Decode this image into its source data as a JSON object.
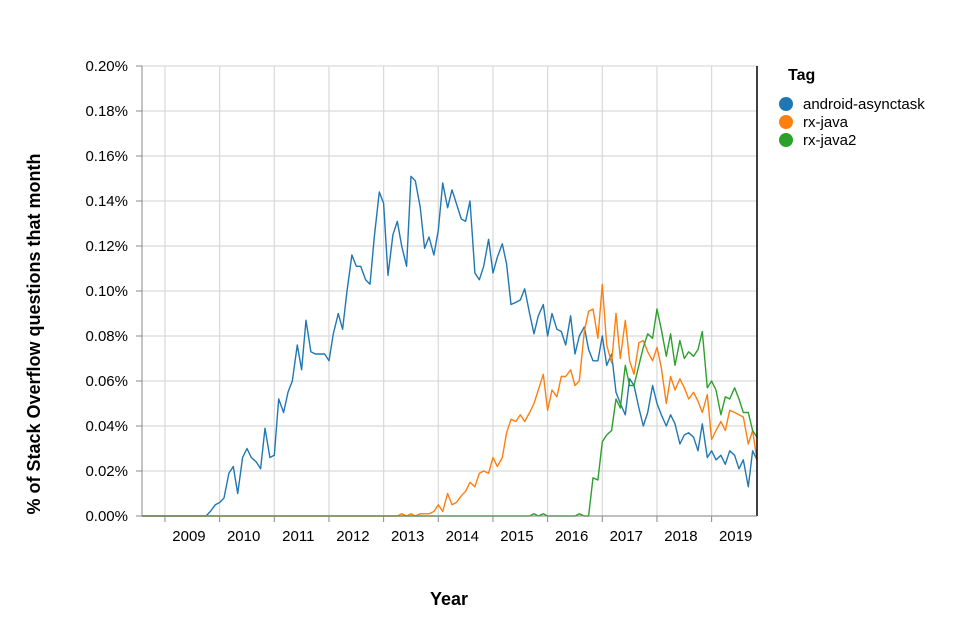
{
  "chart_data": {
    "type": "line",
    "xlabel": "Year",
    "ylabel": "% of Stack Overflow questions that month",
    "x_ticks": [
      "2009",
      "2010",
      "2011",
      "2012",
      "2013",
      "2014",
      "2015",
      "2016",
      "2017",
      "2018",
      "2019"
    ],
    "y_ticks": [
      "0.00%",
      "0.02%",
      "0.04%",
      "0.06%",
      "0.08%",
      "0.10%",
      "0.12%",
      "0.14%",
      "0.16%",
      "0.18%",
      "0.20%"
    ],
    "xlim": [
      2008.58,
      2019.83
    ],
    "ylim": [
      0,
      0.2
    ],
    "grid": true,
    "legend": {
      "title": "Tag",
      "position": "right"
    },
    "series": [
      {
        "name": "android-asynctask",
        "color": "#1f77b4",
        "points": [
          [
            2008.58,
            0
          ],
          [
            2009.0,
            0
          ],
          [
            2009.5,
            0
          ],
          [
            2009.75,
            0
          ],
          [
            2009.83,
            0.002
          ],
          [
            2009.92,
            0.005
          ],
          [
            2010.0,
            0.006
          ],
          [
            2010.08,
            0.008
          ],
          [
            2010.17,
            0.019
          ],
          [
            2010.25,
            0.022
          ],
          [
            2010.33,
            0.01
          ],
          [
            2010.42,
            0.026
          ],
          [
            2010.5,
            0.03
          ],
          [
            2010.58,
            0.026
          ],
          [
            2010.67,
            0.024
          ],
          [
            2010.75,
            0.021
          ],
          [
            2010.83,
            0.039
          ],
          [
            2010.92,
            0.026
          ],
          [
            2011.0,
            0.027
          ],
          [
            2011.08,
            0.052
          ],
          [
            2011.17,
            0.046
          ],
          [
            2011.25,
            0.055
          ],
          [
            2011.33,
            0.06
          ],
          [
            2011.42,
            0.076
          ],
          [
            2011.5,
            0.065
          ],
          [
            2011.58,
            0.087
          ],
          [
            2011.67,
            0.073
          ],
          [
            2011.75,
            0.072
          ],
          [
            2011.83,
            0.072
          ],
          [
            2011.92,
            0.072
          ],
          [
            2012.0,
            0.069
          ],
          [
            2012.08,
            0.081
          ],
          [
            2012.17,
            0.09
          ],
          [
            2012.25,
            0.083
          ],
          [
            2012.33,
            0.1
          ],
          [
            2012.42,
            0.116
          ],
          [
            2012.5,
            0.111
          ],
          [
            2012.58,
            0.111
          ],
          [
            2012.67,
            0.105
          ],
          [
            2012.75,
            0.103
          ],
          [
            2012.83,
            0.124
          ],
          [
            2012.92,
            0.144
          ],
          [
            2013.0,
            0.139
          ],
          [
            2013.08,
            0.107
          ],
          [
            2013.17,
            0.125
          ],
          [
            2013.25,
            0.131
          ],
          [
            2013.33,
            0.12
          ],
          [
            2013.42,
            0.111
          ],
          [
            2013.5,
            0.151
          ],
          [
            2013.58,
            0.149
          ],
          [
            2013.67,
            0.137
          ],
          [
            2013.75,
            0.119
          ],
          [
            2013.83,
            0.124
          ],
          [
            2013.92,
            0.116
          ],
          [
            2014.0,
            0.127
          ],
          [
            2014.08,
            0.148
          ],
          [
            2014.17,
            0.137
          ],
          [
            2014.25,
            0.145
          ],
          [
            2014.33,
            0.139
          ],
          [
            2014.42,
            0.132
          ],
          [
            2014.5,
            0.131
          ],
          [
            2014.58,
            0.14
          ],
          [
            2014.67,
            0.108
          ],
          [
            2014.75,
            0.105
          ],
          [
            2014.83,
            0.111
          ],
          [
            2014.92,
            0.123
          ],
          [
            2015.0,
            0.108
          ],
          [
            2015.08,
            0.115
          ],
          [
            2015.17,
            0.121
          ],
          [
            2015.25,
            0.112
          ],
          [
            2015.33,
            0.094
          ],
          [
            2015.42,
            0.095
          ],
          [
            2015.5,
            0.096
          ],
          [
            2015.58,
            0.101
          ],
          [
            2015.67,
            0.09
          ],
          [
            2015.75,
            0.081
          ],
          [
            2015.83,
            0.089
          ],
          [
            2015.92,
            0.094
          ],
          [
            2016.0,
            0.08
          ],
          [
            2016.08,
            0.09
          ],
          [
            2016.17,
            0.083
          ],
          [
            2016.25,
            0.082
          ],
          [
            2016.33,
            0.076
          ],
          [
            2016.42,
            0.089
          ],
          [
            2016.5,
            0.072
          ],
          [
            2016.58,
            0.08
          ],
          [
            2016.67,
            0.084
          ],
          [
            2016.75,
            0.074
          ],
          [
            2016.83,
            0.069
          ],
          [
            2016.92,
            0.069
          ],
          [
            2017.0,
            0.08
          ],
          [
            2017.08,
            0.067
          ],
          [
            2017.17,
            0.072
          ],
          [
            2017.25,
            0.055
          ],
          [
            2017.33,
            0.05
          ],
          [
            2017.42,
            0.045
          ],
          [
            2017.5,
            0.061
          ],
          [
            2017.58,
            0.058
          ],
          [
            2017.67,
            0.048
          ],
          [
            2017.75,
            0.04
          ],
          [
            2017.83,
            0.046
          ],
          [
            2017.92,
            0.058
          ],
          [
            2018.0,
            0.05
          ],
          [
            2018.08,
            0.045
          ],
          [
            2018.17,
            0.04
          ],
          [
            2018.25,
            0.045
          ],
          [
            2018.33,
            0.041
          ],
          [
            2018.42,
            0.032
          ],
          [
            2018.5,
            0.036
          ],
          [
            2018.58,
            0.037
          ],
          [
            2018.67,
            0.035
          ],
          [
            2018.75,
            0.029
          ],
          [
            2018.83,
            0.041
          ],
          [
            2018.92,
            0.026
          ],
          [
            2019.0,
            0.029
          ],
          [
            2019.08,
            0.025
          ],
          [
            2019.17,
            0.027
          ],
          [
            2019.25,
            0.023
          ],
          [
            2019.33,
            0.029
          ],
          [
            2019.42,
            0.027
          ],
          [
            2019.5,
            0.021
          ],
          [
            2019.58,
            0.025
          ],
          [
            2019.67,
            0.013
          ],
          [
            2019.75,
            0.029
          ],
          [
            2019.83,
            0.025
          ]
        ]
      },
      {
        "name": "rx-java",
        "color": "#ff7f0e",
        "points": [
          [
            2008.58,
            0
          ],
          [
            2013.25,
            0
          ],
          [
            2013.33,
            0.001
          ],
          [
            2013.42,
            0
          ],
          [
            2013.5,
            0.001
          ],
          [
            2013.58,
            0
          ],
          [
            2013.67,
            0.001
          ],
          [
            2013.75,
            0.001
          ],
          [
            2013.83,
            0.001
          ],
          [
            2013.92,
            0.002
          ],
          [
            2014.0,
            0.005
          ],
          [
            2014.08,
            0.002
          ],
          [
            2014.17,
            0.01
          ],
          [
            2014.25,
            0.005
          ],
          [
            2014.33,
            0.006
          ],
          [
            2014.42,
            0.009
          ],
          [
            2014.5,
            0.011
          ],
          [
            2014.58,
            0.015
          ],
          [
            2014.67,
            0.013
          ],
          [
            2014.75,
            0.019
          ],
          [
            2014.83,
            0.02
          ],
          [
            2014.92,
            0.019
          ],
          [
            2015.0,
            0.026
          ],
          [
            2015.08,
            0.022
          ],
          [
            2015.17,
            0.026
          ],
          [
            2015.25,
            0.037
          ],
          [
            2015.33,
            0.043
          ],
          [
            2015.42,
            0.042
          ],
          [
            2015.5,
            0.045
          ],
          [
            2015.58,
            0.042
          ],
          [
            2015.67,
            0.046
          ],
          [
            2015.75,
            0.05
          ],
          [
            2015.83,
            0.056
          ],
          [
            2015.92,
            0.063
          ],
          [
            2016.0,
            0.047
          ],
          [
            2016.08,
            0.056
          ],
          [
            2016.17,
            0.053
          ],
          [
            2016.25,
            0.062
          ],
          [
            2016.33,
            0.062
          ],
          [
            2016.42,
            0.065
          ],
          [
            2016.5,
            0.058
          ],
          [
            2016.58,
            0.06
          ],
          [
            2016.67,
            0.082
          ],
          [
            2016.75,
            0.091
          ],
          [
            2016.83,
            0.092
          ],
          [
            2016.92,
            0.079
          ],
          [
            2017.0,
            0.103
          ],
          [
            2017.08,
            0.076
          ],
          [
            2017.17,
            0.068
          ],
          [
            2017.25,
            0.09
          ],
          [
            2017.33,
            0.07
          ],
          [
            2017.42,
            0.087
          ],
          [
            2017.5,
            0.069
          ],
          [
            2017.58,
            0.063
          ],
          [
            2017.67,
            0.077
          ],
          [
            2017.75,
            0.078
          ],
          [
            2017.83,
            0.073
          ],
          [
            2017.92,
            0.069
          ],
          [
            2018.0,
            0.075
          ],
          [
            2018.08,
            0.066
          ],
          [
            2018.17,
            0.05
          ],
          [
            2018.25,
            0.062
          ],
          [
            2018.33,
            0.056
          ],
          [
            2018.42,
            0.061
          ],
          [
            2018.5,
            0.057
          ],
          [
            2018.58,
            0.052
          ],
          [
            2018.67,
            0.055
          ],
          [
            2018.75,
            0.051
          ],
          [
            2018.83,
            0.046
          ],
          [
            2018.92,
            0.054
          ],
          [
            2019.0,
            0.034
          ],
          [
            2019.08,
            0.038
          ],
          [
            2019.17,
            0.042
          ],
          [
            2019.25,
            0.038
          ],
          [
            2019.33,
            0.047
          ],
          [
            2019.42,
            0.046
          ],
          [
            2019.5,
            0.045
          ],
          [
            2019.58,
            0.044
          ],
          [
            2019.67,
            0.032
          ],
          [
            2019.75,
            0.038
          ],
          [
            2019.83,
            0.025
          ]
        ]
      },
      {
        "name": "rx-java2",
        "color": "#2ca02c",
        "points": [
          [
            2008.58,
            0
          ],
          [
            2015.67,
            0
          ],
          [
            2015.75,
            0.001
          ],
          [
            2015.83,
            0
          ],
          [
            2015.92,
            0.001
          ],
          [
            2016.0,
            0
          ],
          [
            2016.5,
            0
          ],
          [
            2016.58,
            0.001
          ],
          [
            2016.67,
            0
          ],
          [
            2016.75,
            0
          ],
          [
            2016.83,
            0.017
          ],
          [
            2016.92,
            0.016
          ],
          [
            2017.0,
            0.033
          ],
          [
            2017.08,
            0.036
          ],
          [
            2017.17,
            0.038
          ],
          [
            2017.25,
            0.052
          ],
          [
            2017.33,
            0.048
          ],
          [
            2017.42,
            0.067
          ],
          [
            2017.5,
            0.058
          ],
          [
            2017.58,
            0.058
          ],
          [
            2017.67,
            0.067
          ],
          [
            2017.75,
            0.075
          ],
          [
            2017.83,
            0.081
          ],
          [
            2017.92,
            0.079
          ],
          [
            2018.0,
            0.092
          ],
          [
            2018.08,
            0.083
          ],
          [
            2018.17,
            0.071
          ],
          [
            2018.25,
            0.081
          ],
          [
            2018.33,
            0.067
          ],
          [
            2018.42,
            0.078
          ],
          [
            2018.5,
            0.07
          ],
          [
            2018.58,
            0.073
          ],
          [
            2018.67,
            0.071
          ],
          [
            2018.75,
            0.074
          ],
          [
            2018.83,
            0.082
          ],
          [
            2018.92,
            0.057
          ],
          [
            2019.0,
            0.06
          ],
          [
            2019.08,
            0.056
          ],
          [
            2019.17,
            0.045
          ],
          [
            2019.25,
            0.053
          ],
          [
            2019.33,
            0.052
          ],
          [
            2019.42,
            0.057
          ],
          [
            2019.5,
            0.052
          ],
          [
            2019.58,
            0.046
          ],
          [
            2019.67,
            0.046
          ],
          [
            2019.75,
            0.038
          ],
          [
            2019.83,
            0.035
          ]
        ]
      }
    ]
  }
}
